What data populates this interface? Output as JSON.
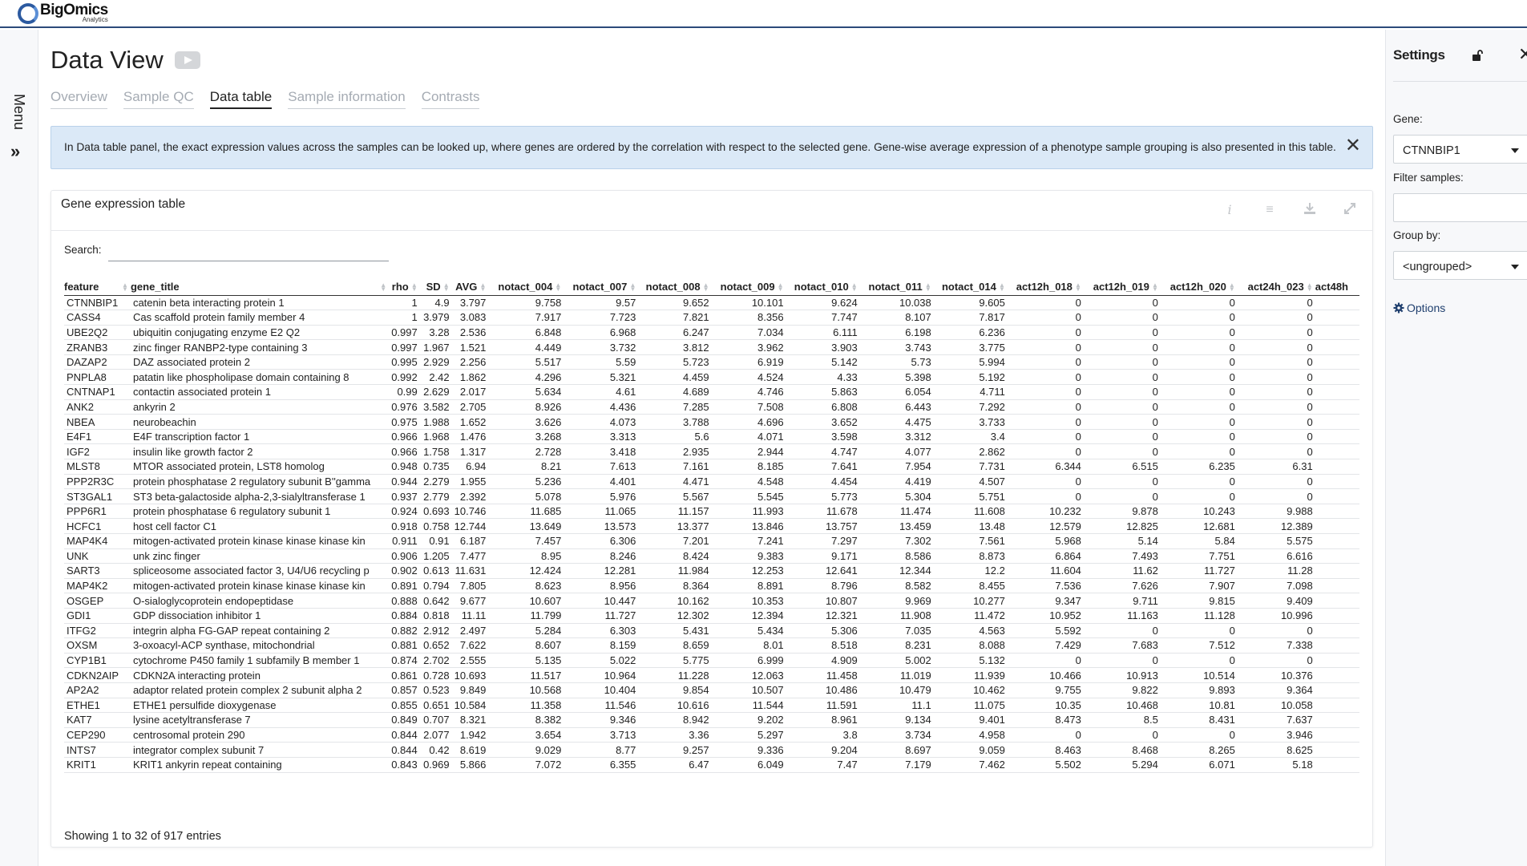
{
  "brand": {
    "name": "BigOmics",
    "sub": "Analytics"
  },
  "menu": {
    "label": "Menu"
  },
  "page": {
    "title": "Data View"
  },
  "tabs": [
    "Overview",
    "Sample QC",
    "Data table",
    "Sample information",
    "Contrasts"
  ],
  "active_tab": "Data table",
  "info": {
    "text": "In Data table panel, the exact expression values across the samples can be looked up, where genes are ordered by the correlation with respect to the selected gene. Gene-wise average expression of a phenotype sample grouping is also presented in this table."
  },
  "card": {
    "title": "Gene expression table"
  },
  "search": {
    "label": "Search:",
    "value": ""
  },
  "table": {
    "columns": [
      "feature",
      "gene_title",
      "rho",
      "SD",
      "AVG",
      "notact_004",
      "notact_007",
      "notact_008",
      "notact_009",
      "notact_010",
      "notact_011",
      "notact_014",
      "act12h_018",
      "act12h_019",
      "act12h_020",
      "act24h_023",
      "act48h"
    ],
    "rows": [
      [
        "CTNNBIP1",
        "catenin beta interacting protein 1",
        "1",
        "4.9",
        "3.797",
        "9.758",
        "9.57",
        "9.652",
        "10.101",
        "9.624",
        "10.038",
        "9.605",
        "0",
        "0",
        "0",
        "0",
        ""
      ],
      [
        "CASS4",
        "Cas scaffold protein family member 4",
        "1",
        "3.979",
        "3.083",
        "7.917",
        "7.723",
        "7.821",
        "8.356",
        "7.747",
        "8.107",
        "7.817",
        "0",
        "0",
        "0",
        "0",
        ""
      ],
      [
        "UBE2Q2",
        "ubiquitin conjugating enzyme E2 Q2",
        "0.997",
        "3.28",
        "2.536",
        "6.848",
        "6.968",
        "6.247",
        "7.034",
        "6.111",
        "6.198",
        "6.236",
        "0",
        "0",
        "0",
        "0",
        ""
      ],
      [
        "ZRANB3",
        "zinc finger RANBP2-type containing 3",
        "0.997",
        "1.967",
        "1.521",
        "4.449",
        "3.732",
        "3.812",
        "3.962",
        "3.903",
        "3.743",
        "3.775",
        "0",
        "0",
        "0",
        "0",
        ""
      ],
      [
        "DAZAP2",
        "DAZ associated protein 2",
        "0.995",
        "2.929",
        "2.256",
        "5.517",
        "5.59",
        "5.723",
        "6.919",
        "5.142",
        "5.73",
        "5.994",
        "0",
        "0",
        "0",
        "0",
        ""
      ],
      [
        "PNPLA8",
        "patatin like phospholipase domain containing 8",
        "0.992",
        "2.42",
        "1.862",
        "4.296",
        "5.321",
        "4.459",
        "4.524",
        "4.33",
        "5.398",
        "5.192",
        "0",
        "0",
        "0",
        "0",
        ""
      ],
      [
        "CNTNAP1",
        "contactin associated protein 1",
        "0.99",
        "2.629",
        "2.017",
        "5.634",
        "4.61",
        "4.689",
        "4.746",
        "5.863",
        "6.054",
        "4.711",
        "0",
        "0",
        "0",
        "0",
        ""
      ],
      [
        "ANK2",
        "ankyrin 2",
        "0.976",
        "3.582",
        "2.705",
        "8.926",
        "4.436",
        "7.285",
        "7.508",
        "6.808",
        "6.443",
        "7.292",
        "0",
        "0",
        "0",
        "0",
        ""
      ],
      [
        "NBEA",
        "neurobeachin",
        "0.975",
        "1.988",
        "1.652",
        "3.626",
        "4.073",
        "3.788",
        "4.696",
        "3.652",
        "4.475",
        "3.733",
        "0",
        "0",
        "0",
        "0",
        ""
      ],
      [
        "E4F1",
        "E4F transcription factor 1",
        "0.966",
        "1.968",
        "1.476",
        "3.268",
        "3.313",
        "5.6",
        "4.071",
        "3.598",
        "3.312",
        "3.4",
        "0",
        "0",
        "0",
        "0",
        ""
      ],
      [
        "IGF2",
        "insulin like growth factor 2",
        "0.966",
        "1.758",
        "1.317",
        "2.728",
        "3.418",
        "2.935",
        "2.944",
        "4.747",
        "4.077",
        "2.862",
        "0",
        "0",
        "0",
        "0",
        ""
      ],
      [
        "MLST8",
        "MTOR associated protein, LST8 homolog",
        "0.948",
        "0.735",
        "6.94",
        "8.21",
        "7.613",
        "7.161",
        "8.185",
        "7.641",
        "7.954",
        "7.731",
        "6.344",
        "6.515",
        "6.235",
        "6.31",
        ""
      ],
      [
        "PPP2R3C",
        "protein phosphatase 2 regulatory subunit B''gamma",
        "0.944",
        "2.279",
        "1.955",
        "5.236",
        "4.401",
        "4.471",
        "4.548",
        "4.454",
        "4.419",
        "4.507",
        "0",
        "0",
        "0",
        "0",
        ""
      ],
      [
        "ST3GAL1",
        "ST3 beta-galactoside alpha-2,3-sialyltransferase 1",
        "0.937",
        "2.779",
        "2.392",
        "5.078",
        "5.976",
        "5.567",
        "5.545",
        "5.773",
        "5.304",
        "5.751",
        "0",
        "0",
        "0",
        "0",
        ""
      ],
      [
        "PPP6R1",
        "protein phosphatase 6 regulatory subunit 1",
        "0.924",
        "0.693",
        "10.746",
        "11.685",
        "11.065",
        "11.157",
        "11.993",
        "11.678",
        "11.474",
        "11.608",
        "10.232",
        "9.878",
        "10.243",
        "9.988",
        ""
      ],
      [
        "HCFC1",
        "host cell factor C1",
        "0.918",
        "0.758",
        "12.744",
        "13.649",
        "13.573",
        "13.377",
        "13.846",
        "13.757",
        "13.459",
        "13.48",
        "12.579",
        "12.825",
        "12.681",
        "12.389",
        ""
      ],
      [
        "MAP4K4",
        "mitogen-activated protein kinase kinase kinase kin",
        "0.911",
        "0.91",
        "6.187",
        "7.457",
        "6.306",
        "7.201",
        "7.241",
        "7.297",
        "7.302",
        "7.561",
        "5.968",
        "5.14",
        "5.84",
        "5.575",
        ""
      ],
      [
        "UNK",
        "unk zinc finger",
        "0.906",
        "1.205",
        "7.477",
        "8.95",
        "8.246",
        "8.424",
        "9.383",
        "9.171",
        "8.586",
        "8.873",
        "6.864",
        "7.493",
        "7.751",
        "6.616",
        ""
      ],
      [
        "SART3",
        "spliceosome associated factor 3, U4/U6 recycling p",
        "0.902",
        "0.613",
        "11.631",
        "12.424",
        "12.281",
        "11.984",
        "12.253",
        "12.641",
        "12.344",
        "12.2",
        "11.604",
        "11.62",
        "11.727",
        "11.28",
        ""
      ],
      [
        "MAP4K2",
        "mitogen-activated protein kinase kinase kinase kin",
        "0.891",
        "0.794",
        "7.805",
        "8.623",
        "8.956",
        "8.364",
        "8.891",
        "8.796",
        "8.582",
        "8.455",
        "7.536",
        "7.626",
        "7.907",
        "7.098",
        ""
      ],
      [
        "OSGEP",
        "O-sialoglycoprotein endopeptidase",
        "0.888",
        "0.642",
        "9.677",
        "10.607",
        "10.447",
        "10.162",
        "10.353",
        "10.807",
        "9.969",
        "10.277",
        "9.347",
        "9.711",
        "9.815",
        "9.409",
        ""
      ],
      [
        "GDI1",
        "GDP dissociation inhibitor 1",
        "0.884",
        "0.818",
        "11.11",
        "11.799",
        "11.727",
        "12.302",
        "12.394",
        "12.321",
        "11.908",
        "11.472",
        "10.952",
        "11.163",
        "11.128",
        "10.996",
        ""
      ],
      [
        "ITFG2",
        "integrin alpha FG-GAP repeat containing 2",
        "0.882",
        "2.912",
        "2.497",
        "5.284",
        "6.303",
        "5.431",
        "5.434",
        "5.306",
        "7.035",
        "4.563",
        "5.592",
        "0",
        "0",
        "0",
        ""
      ],
      [
        "OXSM",
        "3-oxoacyl-ACP synthase, mitochondrial",
        "0.881",
        "0.652",
        "7.622",
        "8.607",
        "8.159",
        "8.659",
        "8.01",
        "8.518",
        "8.231",
        "8.088",
        "7.429",
        "7.683",
        "7.512",
        "7.338",
        ""
      ],
      [
        "CYP1B1",
        "cytochrome P450 family 1 subfamily B member 1",
        "0.874",
        "2.702",
        "2.555",
        "5.135",
        "5.022",
        "5.775",
        "6.999",
        "4.909",
        "5.002",
        "5.132",
        "0",
        "0",
        "0",
        "0",
        ""
      ],
      [
        "CDKN2AIP",
        "CDKN2A interacting protein",
        "0.861",
        "0.728",
        "10.693",
        "11.517",
        "10.964",
        "11.228",
        "12.063",
        "11.458",
        "11.019",
        "11.939",
        "10.466",
        "10.913",
        "10.514",
        "10.376",
        ""
      ],
      [
        "AP2A2",
        "adaptor related protein complex 2 subunit alpha 2",
        "0.857",
        "0.523",
        "9.849",
        "10.568",
        "10.404",
        "9.854",
        "10.507",
        "10.486",
        "10.479",
        "10.462",
        "9.755",
        "9.822",
        "9.893",
        "9.364",
        ""
      ],
      [
        "ETHE1",
        "ETHE1 persulfide dioxygenase",
        "0.855",
        "0.651",
        "10.584",
        "11.358",
        "11.546",
        "10.616",
        "11.544",
        "11.591",
        "11.1",
        "11.075",
        "10.35",
        "10.468",
        "10.81",
        "10.058",
        ""
      ],
      [
        "KAT7",
        "lysine acetyltransferase 7",
        "0.849",
        "0.707",
        "8.321",
        "8.382",
        "9.346",
        "8.942",
        "9.202",
        "8.961",
        "9.134",
        "9.401",
        "8.473",
        "8.5",
        "8.431",
        "7.637",
        ""
      ],
      [
        "CEP290",
        "centrosomal protein 290",
        "0.844",
        "2.077",
        "1.942",
        "3.654",
        "3.713",
        "3.36",
        "5.297",
        "3.8",
        "3.734",
        "4.958",
        "0",
        "0",
        "0",
        "3.946",
        ""
      ],
      [
        "INTS7",
        "integrator complex subunit 7",
        "0.844",
        "0.42",
        "8.619",
        "9.029",
        "8.77",
        "9.257",
        "9.336",
        "9.204",
        "8.697",
        "9.059",
        "8.463",
        "8.468",
        "8.265",
        "8.625",
        ""
      ],
      [
        "KRIT1",
        "KRIT1 ankyrin repeat containing",
        "0.843",
        "0.969",
        "5.866",
        "7.072",
        "6.355",
        "6.47",
        "6.049",
        "7.47",
        "7.179",
        "7.462",
        "5.502",
        "5.294",
        "6.071",
        "5.18",
        ""
      ]
    ]
  },
  "footer": {
    "entries": "Showing 1 to 32 of 917 entries"
  },
  "settings": {
    "title": "Settings",
    "gene_label": "Gene:",
    "gene_value": "CTNNBIP1",
    "filter_label": "Filter samples:",
    "filter_value": "",
    "group_label": "Group by:",
    "group_value": "<ungrouped>",
    "options_label": "Options"
  },
  "icons": {
    "info": "info-icon",
    "menu": "hamburger-icon",
    "download": "download-icon",
    "expand": "expand-icon",
    "close": "close-icon",
    "lock": "unlock-icon",
    "gear": "gear-icon"
  },
  "colors": {
    "accent": "#2c4a7a",
    "info_bg": "#dbe9f7",
    "link": "#1f3f6e"
  }
}
